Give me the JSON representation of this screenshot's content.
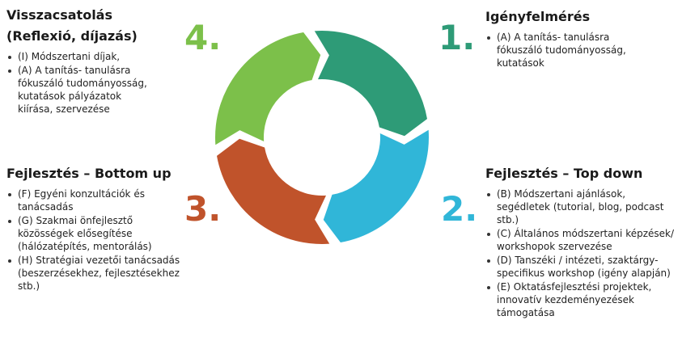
{
  "sections": [
    {
      "number": "1.",
      "color": "#2e9b77",
      "title": [
        "Igényfelmérés"
      ],
      "bullets": [
        [
          "(A) A tanítás- tanulásra",
          "fókuszáló tudományosság,",
          "kutatások"
        ]
      ]
    },
    {
      "number": "2.",
      "color": "#30b6d8",
      "title": [
        "Fejlesztés – Top down"
      ],
      "bullets": [
        [
          "(B) Módszertani ajánlások,",
          "segédletek (tutorial, blog, podcast",
          "stb.)"
        ],
        [
          "(C) Általános módszertani képzések/",
          "workshopok szervezése"
        ],
        [
          "(D) Tanszéki / intézeti, szaktárgy-",
          "specifikus workshop (igény alapján)"
        ],
        [
          "(E) Oktatásfejlesztési projektek,",
          "innovatív kezdeményezések",
          "támogatása"
        ]
      ]
    },
    {
      "number": "3.",
      "color": "#c0532b",
      "title": [
        "Fejlesztés – Bottom up"
      ],
      "bullets": [
        [
          "(F) Egyéni konzultációk és",
          "tanácsadás"
        ],
        [
          "(G) Szakmai önfejlesztő",
          "közösségek elősegítése",
          "(hálózatépítés, mentorálás)"
        ],
        [
          "(H) Stratégiai vezetői tanácsadás",
          "(beszerzésekhez, fejlesztésekhez",
          "stb.)"
        ]
      ]
    },
    {
      "number": "4.",
      "color": "#7cc04a",
      "title": [
        "Visszacsatolás",
        "(Reflexió, díjazás)"
      ],
      "bullets": [
        [
          "(I) Módszertani díjak,"
        ],
        [
          "(A) A tanítás- tanulásra",
          "fókuszáló tudományosság,",
          "kutatások  pályázatok",
          "kiírása, szervezése"
        ]
      ]
    }
  ]
}
